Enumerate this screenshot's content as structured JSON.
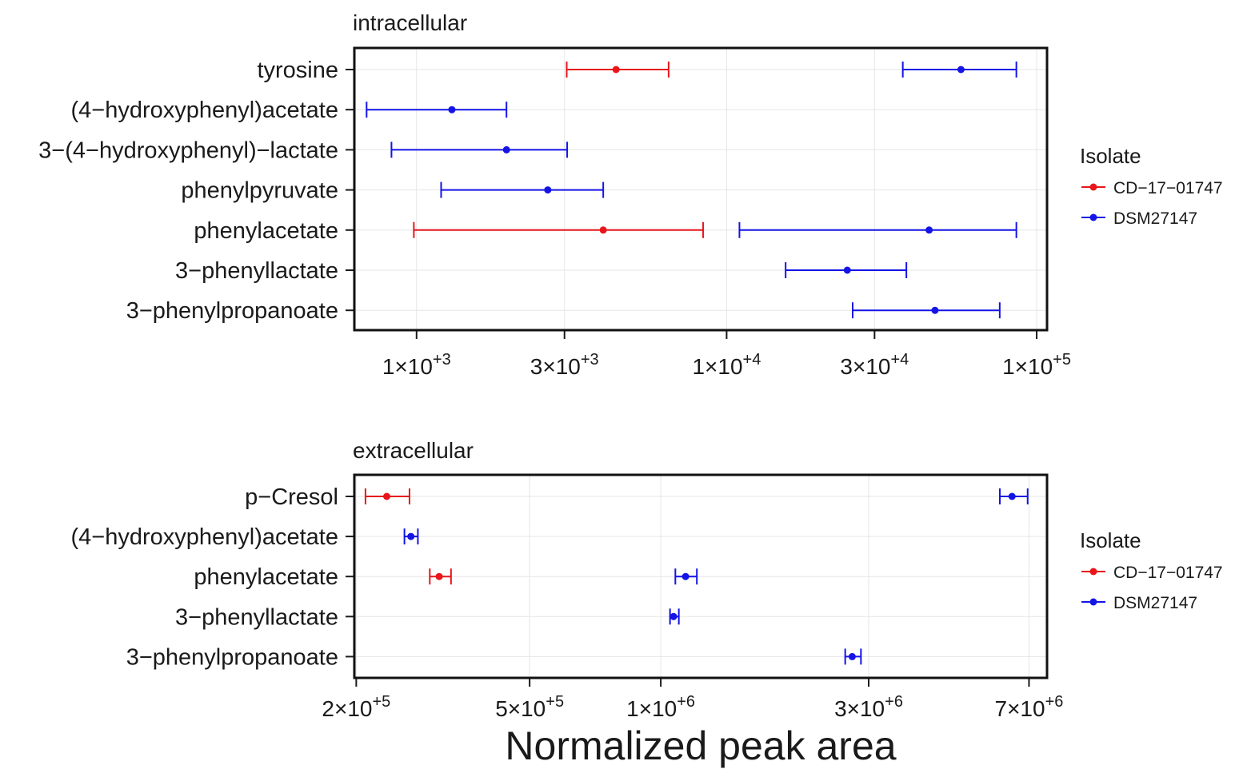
{
  "chart_data": {
    "xlabel": "Normalized peak area",
    "legend": {
      "title": "Isolate",
      "entries": [
        {
          "name": "CD−17−01747",
          "color": "#e8151b"
        },
        {
          "name": "DSM27147",
          "color": "#1414e6"
        }
      ]
    },
    "panels": [
      {
        "type": "scatter",
        "title": "intracellular",
        "xscale": "log10",
        "xlim": [
          630,
          108000
        ],
        "xticks": [
          {
            "value": 1000,
            "mantissa": "1",
            "exponent": "+3"
          },
          {
            "value": 3000,
            "mantissa": "3",
            "exponent": "+3"
          },
          {
            "value": 10000,
            "mantissa": "1",
            "exponent": "+4"
          },
          {
            "value": 30000,
            "mantissa": "3",
            "exponent": "+4"
          },
          {
            "value": 100000,
            "mantissa": "1",
            "exponent": "+5"
          }
        ],
        "categories": [
          "tyrosine",
          "(4−hydroxyphenyl)acetate",
          "3−(4−hydroxyphenyl)−lactate",
          "phenylpyruvate",
          "phenylacetate",
          "3−phenyllactate",
          "3−phenylpropanoate"
        ],
        "series": [
          {
            "name": "CD−17−01747",
            "color": "#e8151b",
            "points": [
              {
                "category": "tyrosine",
                "value": 4400,
                "low": 3050,
                "high": 6500
              },
              {
                "category": "phenylacetate",
                "value": 4000,
                "low": 980,
                "high": 8400
              }
            ]
          },
          {
            "name": "DSM27147",
            "color": "#1414e6",
            "points": [
              {
                "category": "tyrosine",
                "value": 57000,
                "low": 37000,
                "high": 86000
              },
              {
                "category": "(4−hydroxyphenyl)acetate",
                "value": 1300,
                "low": 690,
                "high": 1950
              },
              {
                "category": "3−(4−hydroxyphenyl)−lactate",
                "value": 1950,
                "low": 830,
                "high": 3060
              },
              {
                "category": "phenylpyruvate",
                "value": 2650,
                "low": 1200,
                "high": 4000
              },
              {
                "category": "phenylacetate",
                "value": 45000,
                "low": 11000,
                "high": 86000
              },
              {
                "category": "3−phenyllactate",
                "value": 24500,
                "low": 15500,
                "high": 38000
              },
              {
                "category": "3−phenylpropanoate",
                "value": 47000,
                "low": 25500,
                "high": 76000
              }
            ]
          }
        ]
      },
      {
        "type": "scatter",
        "title": "extracellular",
        "xscale": "log10",
        "xlim": [
          198000,
          7700000
        ],
        "xticks": [
          {
            "value": 200000,
            "mantissa": "2",
            "exponent": "+5"
          },
          {
            "value": 500000,
            "mantissa": "5",
            "exponent": "+5"
          },
          {
            "value": 1000000,
            "mantissa": "1",
            "exponent": "+6"
          },
          {
            "value": 3000000,
            "mantissa": "3",
            "exponent": "+6"
          },
          {
            "value": 7000000,
            "mantissa": "7",
            "exponent": "+6"
          }
        ],
        "categories": [
          "p−Cresol",
          "(4−hydroxyphenyl)acetate",
          "phenylacetate",
          "3−phenyllactate",
          "3−phenylpropanoate"
        ],
        "series": [
          {
            "name": "CD−17−01747",
            "color": "#e8151b",
            "points": [
              {
                "category": "p−Cresol",
                "value": 235000,
                "low": 210000,
                "high": 265000
              },
              {
                "category": "phenylacetate",
                "value": 310000,
                "low": 295000,
                "high": 330000
              }
            ]
          },
          {
            "name": "DSM27147",
            "color": "#1414e6",
            "points": [
              {
                "category": "p−Cresol",
                "value": 6400000,
                "low": 6000000,
                "high": 6950000
              },
              {
                "category": "(4−hydroxyphenyl)acetate",
                "value": 267000,
                "low": 258000,
                "high": 277000
              },
              {
                "category": "phenylacetate",
                "value": 1140000,
                "low": 1080000,
                "high": 1210000
              },
              {
                "category": "3−phenyllactate",
                "value": 1070000,
                "low": 1050000,
                "high": 1100000
              },
              {
                "category": "3−phenylpropanoate",
                "value": 2750000,
                "low": 2650000,
                "high": 2880000
              }
            ]
          }
        ]
      }
    ]
  }
}
